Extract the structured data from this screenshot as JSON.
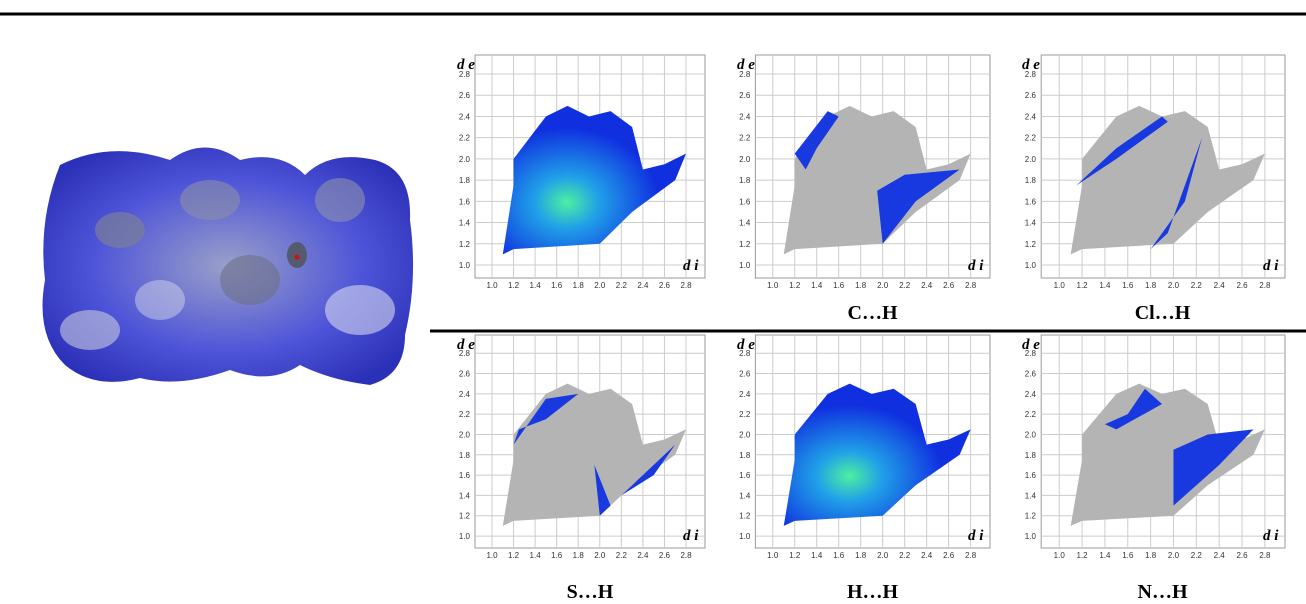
{
  "axis": {
    "ticks": [
      "1.0",
      "1.2",
      "1.4",
      "1.6",
      "1.8",
      "2.0",
      "2.2",
      "2.4",
      "2.6",
      "2.8"
    ],
    "x_label": "d i",
    "y_label": "d e"
  },
  "panels": [
    {},
    {
      "label": "C…H"
    },
    {
      "label": "Cl…H"
    },
    {
      "label": "S…H"
    },
    {
      "label": "H…H"
    },
    {
      "label": "N…H"
    }
  ]
}
